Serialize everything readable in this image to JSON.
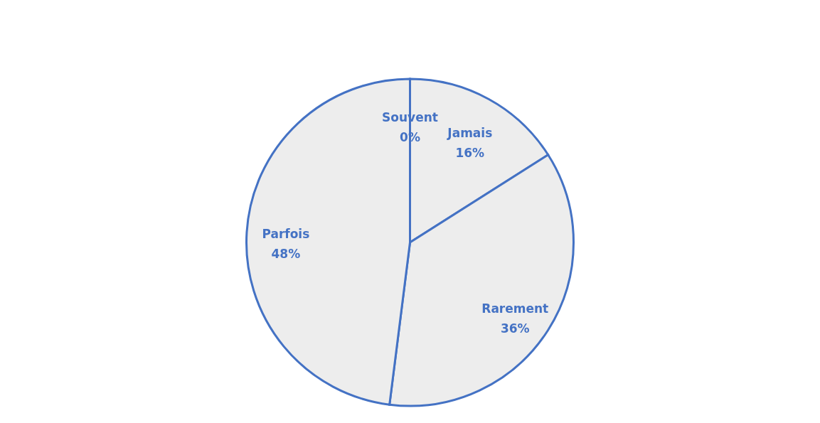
{
  "chart_data": {
    "type": "pie",
    "categories": [
      "Jamais",
      "Rarement",
      "Parfois",
      "Souvent"
    ],
    "values": [
      16,
      36,
      48,
      0
    ],
    "colors": [
      "#ededed",
      "#ededed",
      "#ededed",
      "#ededed"
    ],
    "value_labels": [
      "16%",
      "36%",
      "48%",
      "0%"
    ]
  }
}
